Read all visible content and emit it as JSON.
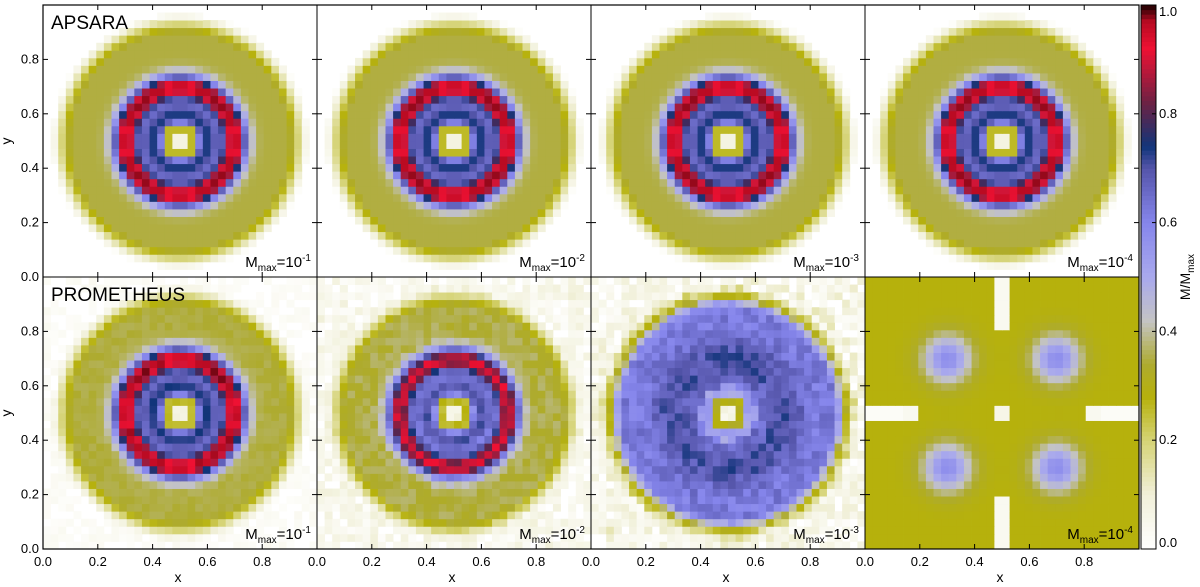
{
  "chart_data": {
    "type": "heatmap",
    "colorbar": {
      "label": "M/M",
      "label_subscript": "max",
      "range": [
        0.0,
        1.0
      ],
      "ticks": [
        "0.0",
        "0.2",
        "0.4",
        "0.6",
        "0.8",
        "1.0"
      ],
      "tick_values": [
        0.0,
        0.2,
        0.4,
        0.6,
        0.8,
        1.0
      ],
      "colormap": [
        {
          "v": 0.0,
          "c": "#ffffff"
        },
        {
          "v": 0.1,
          "c": "#f1f0d9"
        },
        {
          "v": 0.2,
          "c": "#d5d375"
        },
        {
          "v": 0.28,
          "c": "#b6b10c"
        },
        {
          "v": 0.34,
          "c": "#aeab2e"
        },
        {
          "v": 0.42,
          "c": "#c4c4c4"
        },
        {
          "v": 0.5,
          "c": "#a9a9ed"
        },
        {
          "v": 0.6,
          "c": "#8686ec"
        },
        {
          "v": 0.7,
          "c": "#5555aa"
        },
        {
          "v": 0.74,
          "c": "#11357a"
        },
        {
          "v": 0.82,
          "c": "#6b2244"
        },
        {
          "v": 0.92,
          "c": "#ee1133"
        },
        {
          "v": 0.97,
          "c": "#b80b22"
        },
        {
          "v": 1.0,
          "c": "#1a0000"
        }
      ]
    },
    "x_axis": {
      "label": "x",
      "range": [
        0.0,
        1.0
      ],
      "ticks": [
        "0.0",
        "0.2",
        "0.4",
        "0.6",
        "0.8"
      ],
      "tick_values": [
        0.0,
        0.2,
        0.4,
        0.6,
        0.8
      ]
    },
    "y_axis": {
      "label": "y",
      "range": [
        0.0,
        1.0
      ],
      "ticks": [
        "0.0",
        "0.2",
        "0.4",
        "0.6",
        "0.8"
      ],
      "tick_values": [
        0.0,
        0.2,
        0.4,
        0.6,
        0.8
      ]
    },
    "rows": [
      {
        "label": "APSARA",
        "panels": [
          {
            "label": "M",
            "label_sub": "max",
            "label_rest": "=10",
            "label_exp": "-1",
            "m_max": 0.1,
            "profile": "ring",
            "ring_strength": 1.0,
            "noise": 0.0
          },
          {
            "label": "M",
            "label_sub": "max",
            "label_rest": "=10",
            "label_exp": "-2",
            "m_max": 0.01,
            "profile": "ring",
            "ring_strength": 1.0,
            "noise": 0.0
          },
          {
            "label": "M",
            "label_sub": "max",
            "label_rest": "=10",
            "label_exp": "-3",
            "m_max": 0.001,
            "profile": "ring",
            "ring_strength": 1.0,
            "noise": 0.0
          },
          {
            "label": "M",
            "label_sub": "max",
            "label_rest": "=10",
            "label_exp": "-4",
            "m_max": 0.0001,
            "profile": "ring",
            "ring_strength": 1.0,
            "noise": 0.0
          }
        ]
      },
      {
        "label": "PROMETHEUS",
        "panels": [
          {
            "label": "M",
            "label_sub": "max",
            "label_rest": "=10",
            "label_exp": "-1",
            "m_max": 0.1,
            "profile": "ring",
            "ring_strength": 1.0,
            "noise": 0.02
          },
          {
            "label": "M",
            "label_sub": "max",
            "label_rest": "=10",
            "label_exp": "-2",
            "m_max": 0.01,
            "profile": "ring",
            "ring_strength": 0.9,
            "noise": 0.05
          },
          {
            "label": "M",
            "label_sub": "max",
            "label_rest": "=10",
            "label_exp": "-3",
            "m_max": 0.001,
            "profile": "disk",
            "ring_strength": 0.0,
            "noise": 0.08
          },
          {
            "label": "M",
            "label_sub": "max",
            "label_rest": "=10",
            "label_exp": "-4",
            "m_max": 0.0001,
            "profile": "lattice",
            "ring_strength": 0.0,
            "noise": 0.0
          }
        ]
      }
    ],
    "grid": false
  }
}
